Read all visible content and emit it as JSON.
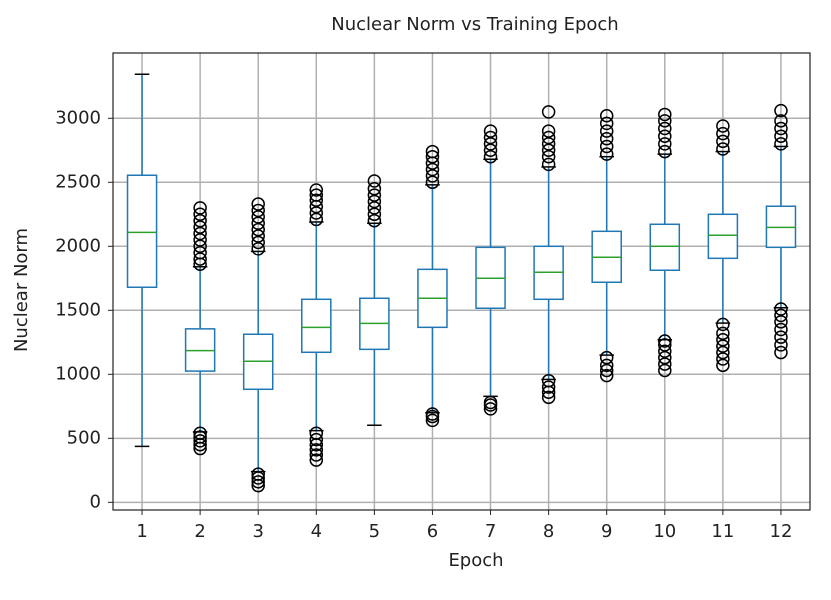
{
  "chart_data": {
    "type": "box",
    "title": "Nuclear Norm vs Training Epoch",
    "xlabel": "Epoch",
    "ylabel": "Nuclear Norm",
    "categories": [
      "1",
      "2",
      "3",
      "4",
      "5",
      "6",
      "7",
      "8",
      "9",
      "10",
      "11",
      "12"
    ],
    "boxes": [
      {
        "whislo": 437,
        "q1": 1680,
        "med": 2109,
        "q3": 2555,
        "whishi": 3344,
        "fliers": []
      },
      {
        "whislo": 550,
        "q1": 1025,
        "med": 1185,
        "q3": 1355,
        "whishi": 1840,
        "fliers": [
          420,
          450,
          480,
          510,
          540,
          1860,
          1900,
          1950,
          2000,
          2050,
          2100,
          2150,
          2200,
          2250,
          2300
        ]
      },
      {
        "whislo": 240,
        "q1": 883,
        "med": 1102,
        "q3": 1313,
        "whishi": 1960,
        "fliers": [
          130,
          160,
          190,
          220,
          1980,
          2030,
          2080,
          2130,
          2180,
          2230,
          2280,
          2330
        ]
      },
      {
        "whislo": 560,
        "q1": 1172,
        "med": 1367,
        "q3": 1586,
        "whishi": 2190,
        "fliers": [
          330,
          370,
          410,
          450,
          490,
          540,
          2210,
          2260,
          2310,
          2360,
          2400,
          2440
        ]
      },
      {
        "whislo": 602,
        "q1": 1195,
        "med": 1398,
        "q3": 1594,
        "whishi": 2180,
        "fliers": [
          2200,
          2250,
          2300,
          2350,
          2400,
          2450,
          2510
        ]
      },
      {
        "whislo": 700,
        "q1": 1367,
        "med": 1594,
        "q3": 1820,
        "whishi": 2480,
        "fliers": [
          640,
          670,
          690,
          2500,
          2550,
          2600,
          2650,
          2700,
          2740
        ]
      },
      {
        "whislo": 828,
        "q1": 1516,
        "med": 1750,
        "q3": 1992,
        "whishi": 2680,
        "fliers": [
          730,
          760,
          780,
          2700,
          2750,
          2800,
          2850,
          2900
        ]
      },
      {
        "whislo": 960,
        "q1": 1586,
        "med": 1797,
        "q3": 2000,
        "whishi": 2620,
        "fliers": [
          820,
          860,
          900,
          950,
          2640,
          2700,
          2750,
          2800,
          2850,
          2900,
          3050
        ]
      },
      {
        "whislo": 1150,
        "q1": 1719,
        "med": 1914,
        "q3": 2117,
        "whishi": 2700,
        "fliers": [
          990,
          1030,
          1070,
          1130,
          2720,
          2780,
          2840,
          2900,
          2960,
          3020
        ]
      },
      {
        "whislo": 1270,
        "q1": 1813,
        "med": 2000,
        "q3": 2172,
        "whishi": 2720,
        "fliers": [
          1030,
          1080,
          1130,
          1180,
          1230,
          1260,
          2740,
          2800,
          2860,
          2920,
          2980,
          3030
        ]
      },
      {
        "whislo": 1400,
        "q1": 1906,
        "med": 2086,
        "q3": 2250,
        "whishi": 2740,
        "fliers": [
          1070,
          1120,
          1170,
          1220,
          1270,
          1320,
          1390,
          2760,
          2820,
          2880,
          2940
        ]
      },
      {
        "whislo": 1520,
        "q1": 1992,
        "med": 2148,
        "q3": 2313,
        "whishi": 2780,
        "fliers": [
          1170,
          1230,
          1290,
          1350,
          1410,
          1460,
          1510,
          2800,
          2860,
          2920,
          2980,
          3060
        ]
      }
    ],
    "box_color": "#1f77b4",
    "median_color": "#2ca02c",
    "ylim": [
      -60,
      3510
    ],
    "yticks": [
      0,
      500,
      1000,
      1500,
      2000,
      2500,
      3000
    ],
    "grid": true
  }
}
